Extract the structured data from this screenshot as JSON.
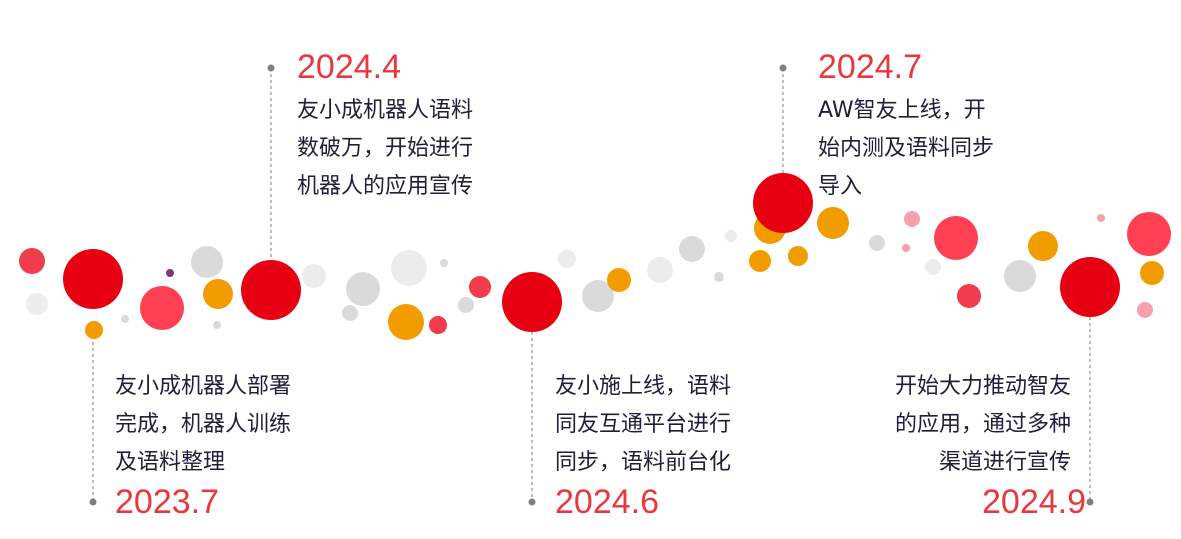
{
  "milestones": [
    {
      "year": "2023.7",
      "lines": [
        "友小成机器人部署",
        "完成，机器人训练",
        "及语料整理"
      ]
    },
    {
      "year": "2024.4",
      "lines": [
        "友小成机器人语料",
        "数破万，开始进行",
        "机器人的应用宣传"
      ]
    },
    {
      "year": "2024.6",
      "lines": [
        "友小施上线，语料",
        "同友互通平台进行",
        "同步，语料前台化"
      ]
    },
    {
      "year": "2024.7",
      "lines": [
        "AW智友上线，开",
        "始内测及语料同步",
        "导入"
      ]
    },
    {
      "year": "2024.9",
      "lines": [
        "开始大力推动智友",
        "的应用，通过多种",
        "渠道进行宣传"
      ]
    }
  ],
  "colors": {
    "accent_red": "#e60012",
    "year_red": "#e8383d",
    "orange": "#f29c00",
    "gray": "#dcdcdc",
    "text": "#1f1f3a"
  }
}
